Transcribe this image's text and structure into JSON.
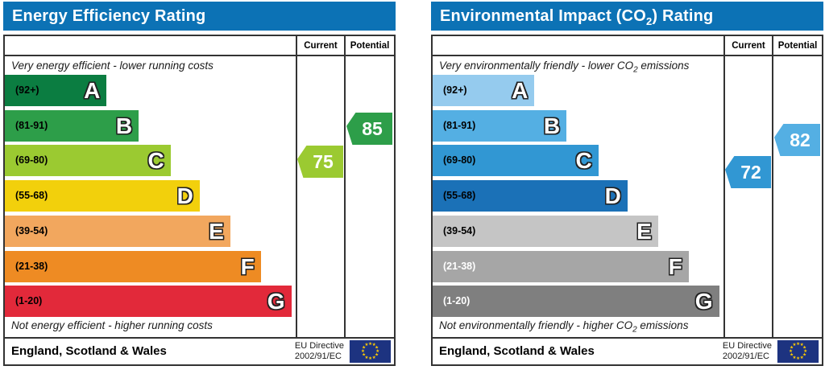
{
  "header_color": "#0c72b5",
  "chart_data": [
    {
      "type": "bar",
      "title": "Energy Efficiency Rating",
      "categories": [
        "A (92+)",
        "B (81-91)",
        "C (69-80)",
        "D (55-68)",
        "E (39-54)",
        "F (21-38)",
        "G (1-20)"
      ],
      "band_bar_width_pct": [
        35,
        46,
        57,
        67,
        77.5,
        88,
        98.5
      ],
      "series": [
        {
          "name": "Current",
          "value": 75,
          "band": "C"
        },
        {
          "name": "Potential",
          "value": 85,
          "band": "B"
        }
      ],
      "scale_range": [
        1,
        100
      ],
      "top_label": "Very energy efficient - lower running costs",
      "bottom_label": "Not energy efficient - higher running costs",
      "region": "England, Scotland & Wales",
      "directive": "EU Directive 2002/91/EC"
    },
    {
      "type": "bar",
      "title": "Environmental Impact (CO2) Rating",
      "categories": [
        "A (92+)",
        "B (81-91)",
        "C (69-80)",
        "D (55-68)",
        "E (39-54)",
        "F (21-38)",
        "G (1-20)"
      ],
      "band_bar_width_pct": [
        35,
        46,
        57,
        67,
        77.5,
        88,
        98.5
      ],
      "series": [
        {
          "name": "Current",
          "value": 72,
          "band": "C"
        },
        {
          "name": "Potential",
          "value": 82,
          "band": "B"
        }
      ],
      "scale_range": [
        1,
        100
      ],
      "top_label": "Very environmentally friendly - lower CO2 emissions",
      "bottom_label": "Not environmentally friendly - higher CO2 emissions",
      "region": "England, Scotland & Wales",
      "directive": "EU Directive 2002/91/EC"
    }
  ],
  "charts": [
    {
      "title": {
        "pre": "Energy Efficiency Rating",
        "sub": "",
        "post": ""
      },
      "header_color": "#0c72b5",
      "col_current": "Current",
      "col_potential": "Potential",
      "top_caption": {
        "pre": "Very energy efficient - lower running costs",
        "sub": "",
        "post": ""
      },
      "bottom_caption": {
        "pre": "Not energy efficient - higher running costs",
        "sub": "",
        "post": ""
      },
      "bands": [
        {
          "letter": "A",
          "range": "(92+)",
          "color": "#0b7d41",
          "width_pct": 35,
          "label_color": "#000000"
        },
        {
          "letter": "B",
          "range": "(81-91)",
          "color": "#2d9e49",
          "width_pct": 46,
          "label_color": "#000000"
        },
        {
          "letter": "C",
          "range": "(69-80)",
          "color": "#9bca31",
          "width_pct": 57,
          "label_color": "#000000"
        },
        {
          "letter": "D",
          "range": "(55-68)",
          "color": "#f2d00c",
          "width_pct": 67,
          "label_color": "#000000"
        },
        {
          "letter": "E",
          "range": "(39-54)",
          "color": "#f2a75e",
          "width_pct": 77.5,
          "label_color": "#000000"
        },
        {
          "letter": "F",
          "range": "(21-38)",
          "color": "#ee8b23",
          "width_pct": 88,
          "label_color": "#000000"
        },
        {
          "letter": "G",
          "range": "(1-20)",
          "color": "#e2293a",
          "width_pct": 98.5,
          "label_color": "#000000"
        }
      ],
      "current": {
        "value": "75",
        "color": "#9bca31"
      },
      "potential": {
        "value": "85",
        "color": "#2d9e49"
      },
      "footer": {
        "region": "England, Scotland & Wales",
        "directive_line1": "EU Directive",
        "directive_line2": "2002/91/EC"
      }
    },
    {
      "title": {
        "pre": "Environmental Impact (CO",
        "sub": "2",
        "post": ") Rating"
      },
      "header_color": "#0c72b5",
      "col_current": "Current",
      "col_potential": "Potential",
      "top_caption": {
        "pre": "Very environmentally friendly - lower CO",
        "sub": "2",
        "post": " emissions"
      },
      "bottom_caption": {
        "pre": "Not environmentally friendly - higher CO",
        "sub": "2",
        "post": " emissions"
      },
      "bands": [
        {
          "letter": "A",
          "range": "(92+)",
          "color": "#95cbee",
          "width_pct": 35,
          "label_color": "#000000"
        },
        {
          "letter": "B",
          "range": "(81-91)",
          "color": "#54afe3",
          "width_pct": 46,
          "label_color": "#000000"
        },
        {
          "letter": "C",
          "range": "(69-80)",
          "color": "#3197d3",
          "width_pct": 57,
          "label_color": "#000000"
        },
        {
          "letter": "D",
          "range": "(55-68)",
          "color": "#1b71b7",
          "width_pct": 67,
          "label_color": "#000000"
        },
        {
          "letter": "E",
          "range": "(39-54)",
          "color": "#c5c5c5",
          "width_pct": 77.5,
          "label_color": "#000000"
        },
        {
          "letter": "F",
          "range": "(21-38)",
          "color": "#a6a6a6",
          "width_pct": 88,
          "label_color": "#ffffff"
        },
        {
          "letter": "G",
          "range": "(1-20)",
          "color": "#7f7f7f",
          "width_pct": 98.5,
          "label_color": "#ffffff"
        }
      ],
      "current": {
        "value": "72",
        "color": "#3197d3"
      },
      "potential": {
        "value": "82",
        "color": "#54afe3"
      },
      "footer": {
        "region": "England, Scotland & Wales",
        "directive_line1": "EU Directive",
        "directive_line2": "2002/91/EC"
      }
    }
  ]
}
